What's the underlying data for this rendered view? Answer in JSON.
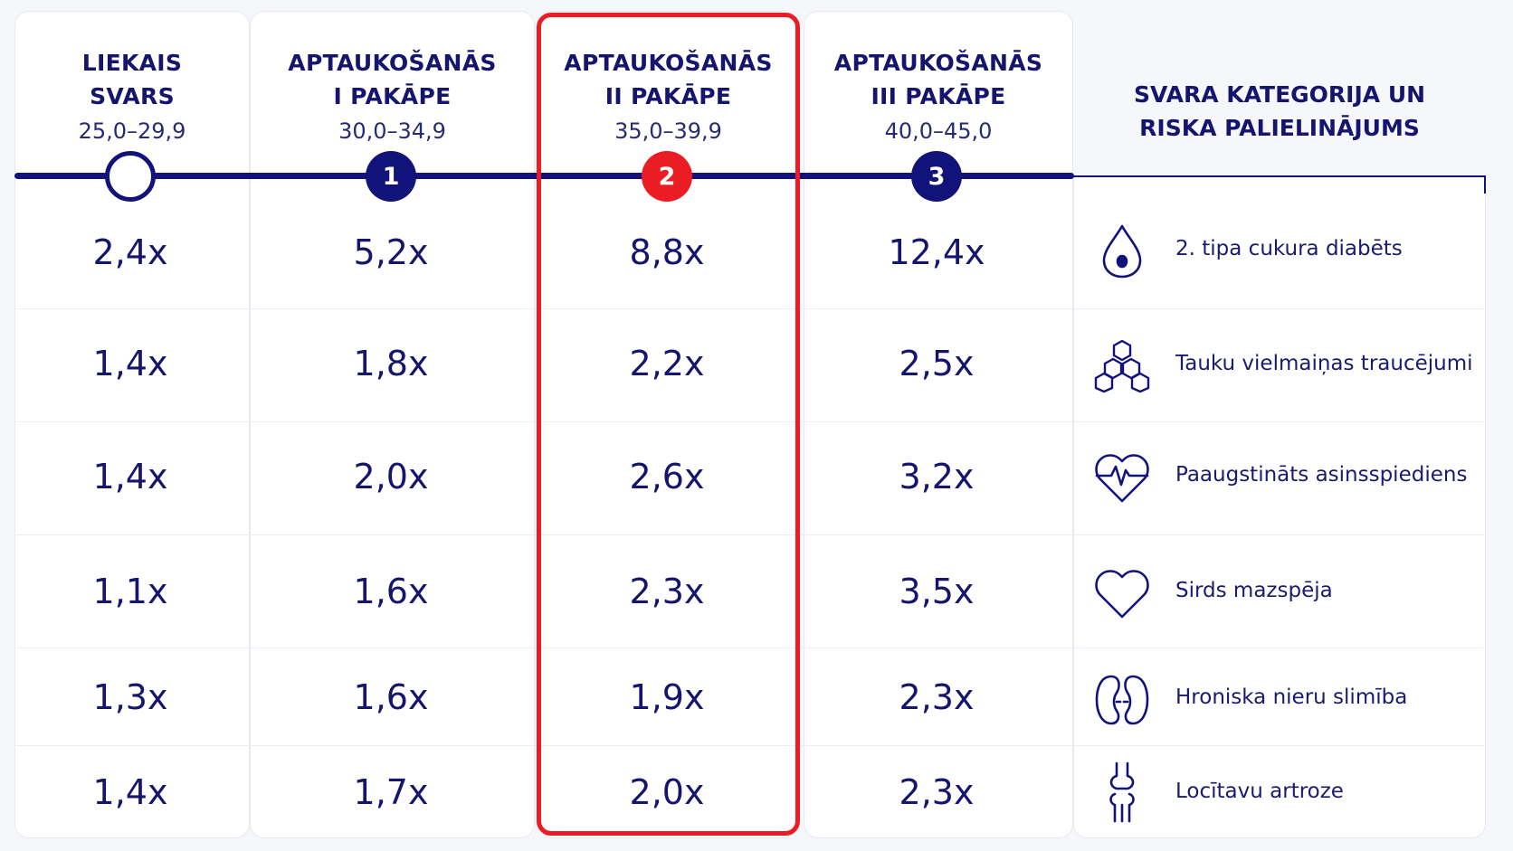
{
  "columns": [
    {
      "title": "LIEKAIS\nSVARS",
      "range": "25,0–29,9",
      "marker": "",
      "values": [
        "2,4x",
        "1,4x",
        "1,4x",
        "1,1x",
        "1,3x",
        "1,4x"
      ]
    },
    {
      "title": "APTAUKOŠANĀS\nI PAKĀPE",
      "range": "30,0–34,9",
      "marker": "1",
      "values": [
        "5,2x",
        "1,8x",
        "2,0x",
        "1,6x",
        "1,6x",
        "1,7x"
      ]
    },
    {
      "title": "APTAUKOŠANĀS\nII PAKĀPE",
      "range": "35,0–39,9",
      "marker": "2",
      "values": [
        "8,8x",
        "2,2x",
        "2,6x",
        "2,3x",
        "1,9x",
        "2,0x"
      ]
    },
    {
      "title": "APTAUKOŠANĀS\nIII PAKĀPE",
      "range": "40,0–45,0",
      "marker": "3",
      "values": [
        "12,4x",
        "2,5x",
        "3,2x",
        "3,5x",
        "2,3x",
        "2,3x"
      ]
    }
  ],
  "risk_header": "SVARA KATEGORIJA UN\nRISKA PALIELINĀJUMS",
  "risks": [
    {
      "label": "2. tipa cukura diabēts",
      "icon": "drop-icon"
    },
    {
      "label": "Tauku vielmaiņas traucējumi",
      "icon": "hexagons-icon"
    },
    {
      "label": "Paaugstināts asinsspiediens",
      "icon": "heartbeat-icon"
    },
    {
      "label": "Sirds mazspēja",
      "icon": "heart-icon"
    },
    {
      "label": "Hroniska nieru slimība",
      "icon": "kidneys-icon"
    },
    {
      "label": "Locītavu artroze",
      "icon": "joint-icon"
    }
  ],
  "colors": {
    "navy": "#12137a",
    "highlight": "#ec1c24"
  },
  "highlighted_column": "APTAUKOŠANĀS II PAKĀPE"
}
